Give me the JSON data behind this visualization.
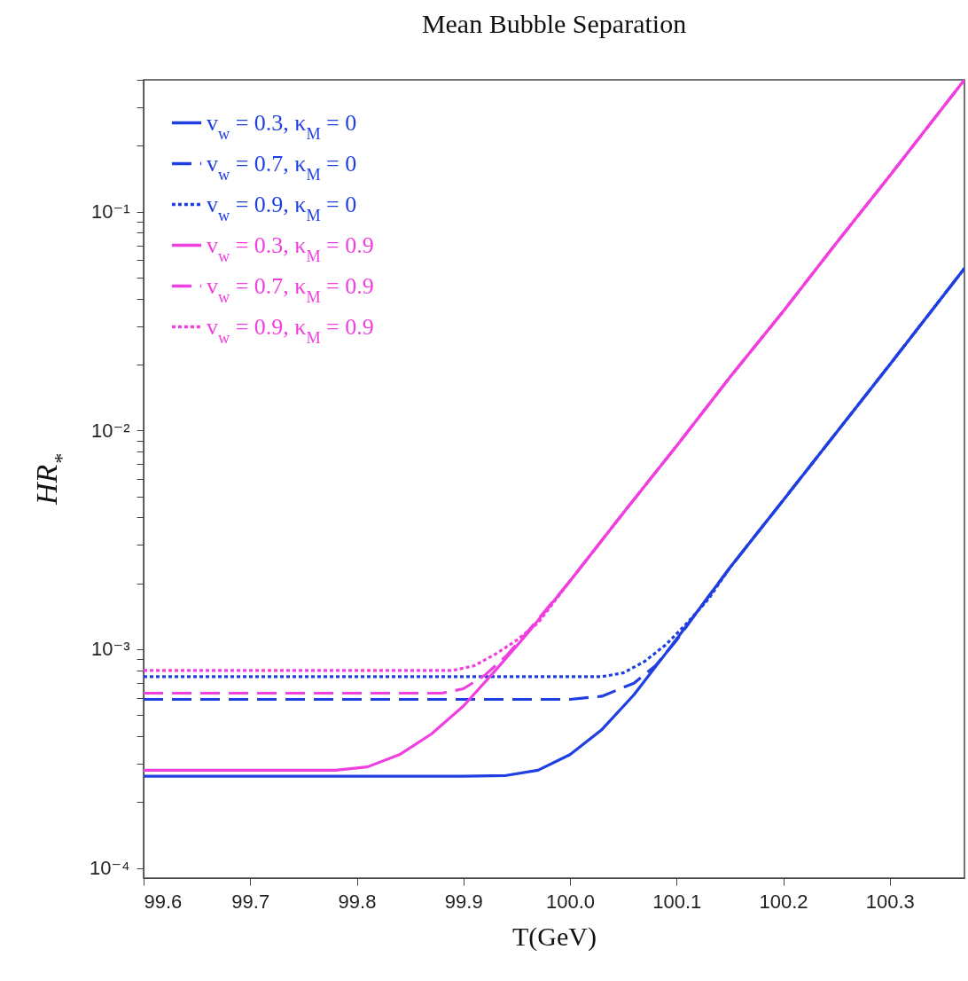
{
  "chart_data": {
    "type": "line",
    "title": "Mean Bubble Separation",
    "xlabel": "T(GeV)",
    "ylabel": "HR$_{*}$",
    "log": "y",
    "legend": "top left",
    "grid": false,
    "xlim": [
      99.6,
      100.37
    ],
    "ylim": [
      9e-05,
      0.4
    ],
    "xticks": [
      99.6,
      99.7,
      99.8,
      99.9,
      {
        "value": 100.0,
        "label": "100.0"
      },
      100.1,
      100.2,
      100.3
    ],
    "yticks": [
      {
        "value": 0.0001,
        "label": "10⁻⁴"
      },
      {
        "value": 0.0002,
        "label": null
      },
      {
        "value": 0.0003,
        "label": null
      },
      {
        "value": 0.0004,
        "label": null
      },
      {
        "value": 0.0005,
        "label": null
      },
      {
        "value": 0.0006,
        "label": null
      },
      {
        "value": 0.0007,
        "label": null
      },
      {
        "value": 0.0008,
        "label": null
      },
      {
        "value": 0.0009,
        "label": null
      },
      {
        "value": 0.001,
        "label": "10⁻³"
      },
      {
        "value": 0.002,
        "label": null
      },
      {
        "value": 0.003,
        "label": null
      },
      {
        "value": 0.004,
        "label": null
      },
      {
        "value": 0.005,
        "label": null
      },
      {
        "value": 0.006,
        "label": null
      },
      {
        "value": 0.007,
        "label": null
      },
      {
        "value": 0.008,
        "label": null
      },
      {
        "value": 0.009,
        "label": null
      },
      {
        "value": 0.01,
        "label": "10⁻²"
      },
      {
        "value": 0.02,
        "label": null
      },
      {
        "value": 0.03,
        "label": null
      },
      {
        "value": 0.04,
        "label": null
      },
      {
        "value": 0.05,
        "label": null
      },
      {
        "value": 0.06,
        "label": null
      },
      {
        "value": 0.07,
        "label": null
      },
      {
        "value": 0.08,
        "label": null
      },
      {
        "value": 0.09,
        "label": null
      },
      {
        "value": 0.1,
        "label": "10⁻¹"
      },
      {
        "value": 0.2,
        "label": null
      },
      {
        "value": 0.3,
        "label": null
      },
      {
        "value": 0.4,
        "label": null
      }
    ],
    "series": [
      {
        "name": "v$_{w}$ = 0.3, κ$_{M}$ = 0",
        "color": "#1f3fe0",
        "line_style": "solid",
        "x": [
          99.6,
          99.9,
          99.94,
          99.97,
          100.0,
          100.03,
          100.06,
          100.09,
          100.12,
          100.15,
          100.2,
          100.25,
          100.3,
          100.37
        ],
        "values": [
          0.000263,
          0.000263,
          0.000265,
          0.00028,
          0.00033,
          0.00043,
          0.00062,
          0.00096,
          0.0015,
          0.00236,
          0.0048,
          0.0098,
          0.02,
          0.055
        ]
      },
      {
        "name": "v$_{w}$ = 0.7, κ$_{M}$ = 0",
        "color": "#1f3fe0",
        "line_style": "dashed",
        "x": [
          99.6,
          100.0,
          100.03,
          100.06,
          100.08,
          100.1,
          100.12,
          100.15,
          100.2,
          100.25,
          100.3,
          100.37
        ],
        "values": [
          0.00059,
          0.00059,
          0.00061,
          0.0007,
          0.00084,
          0.0011,
          0.0015,
          0.00236,
          0.0048,
          0.0098,
          0.02,
          0.055
        ]
      },
      {
        "name": "v$_{w}$ = 0.9, κ$_{M}$ = 0",
        "color": "#1f3fe0",
        "line_style": "dotted",
        "x": [
          99.6,
          100.03,
          100.05,
          100.07,
          100.09,
          100.11,
          100.13,
          100.15,
          100.2,
          100.25,
          100.3,
          100.37
        ],
        "values": [
          0.00075,
          0.00075,
          0.00078,
          0.00088,
          0.00105,
          0.00132,
          0.0017,
          0.00236,
          0.0048,
          0.0098,
          0.02,
          0.055
        ]
      },
      {
        "name": "v$_{w}$ = 0.3, κ$_{M}$ = 0.9",
        "color": "#f03fe0",
        "line_style": "solid",
        "x": [
          99.6,
          99.78,
          99.81,
          99.84,
          99.87,
          99.9,
          99.93,
          99.96,
          100.0,
          100.05,
          100.1,
          100.15,
          100.2,
          100.25,
          100.3,
          100.37
        ],
        "values": [
          0.00028,
          0.00028,
          0.00029,
          0.00033,
          0.00041,
          0.00055,
          0.0008,
          0.00118,
          0.00205,
          0.0042,
          0.0085,
          0.0175,
          0.035,
          0.072,
          0.146,
          0.4
        ]
      },
      {
        "name": "v$_{w}$ = 0.7, κ$_{M}$ = 0.9",
        "color": "#f03fe0",
        "line_style": "dashed",
        "x": [
          99.6,
          99.88,
          99.9,
          99.92,
          99.94,
          99.96,
          100.0,
          100.05,
          100.1,
          100.15,
          100.2,
          100.25,
          100.3,
          100.37
        ],
        "values": [
          0.00063,
          0.00063,
          0.00066,
          0.00076,
          0.00093,
          0.0012,
          0.00205,
          0.0042,
          0.0085,
          0.0175,
          0.035,
          0.072,
          0.146,
          0.4
        ]
      },
      {
        "name": "v$_{w}$ = 0.9, κ$_{M}$ = 0.9",
        "color": "#f03fe0",
        "line_style": "dotted",
        "x": [
          99.6,
          99.89,
          99.91,
          99.93,
          99.95,
          99.97,
          100.0,
          100.05,
          100.1,
          100.15,
          100.2,
          100.25,
          100.3,
          100.37
        ],
        "values": [
          0.0008,
          0.0008,
          0.00084,
          0.00095,
          0.0011,
          0.00132,
          0.00205,
          0.0042,
          0.0085,
          0.0175,
          0.035,
          0.072,
          0.146,
          0.4
        ]
      }
    ]
  }
}
